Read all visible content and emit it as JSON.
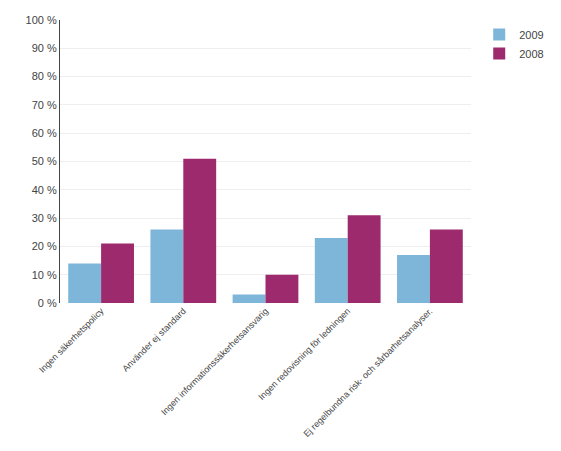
{
  "chart_data": {
    "type": "bar",
    "categories": [
      "Ingen säkerhetspolicy",
      "Använder ej standard",
      "Ingen informationssäkerhetsansvarig",
      "Ingen redovisning för ledningen",
      "Ej regelbundna risk- och sårbarhetsanalyser."
    ],
    "series": [
      {
        "name": "2009",
        "color": "#7EB6D9",
        "values": [
          14,
          26,
          3,
          23,
          17
        ]
      },
      {
        "name": "2008",
        "color": "#9E2A6E",
        "values": [
          21,
          51,
          10,
          31,
          26
        ]
      }
    ],
    "ylim": [
      0,
      100
    ],
    "yticks": [
      {
        "value": 0,
        "label": "0 %"
      },
      {
        "value": 10,
        "label": "10 %"
      },
      {
        "value": 20,
        "label": "20 %"
      },
      {
        "value": 30,
        "label": "30 %"
      },
      {
        "value": 40,
        "label": "40 %"
      },
      {
        "value": 50,
        "label": "50 %"
      },
      {
        "value": 60,
        "label": "60 %"
      },
      {
        "value": 70,
        "label": "70 %"
      },
      {
        "value": 80,
        "label": "80 %"
      },
      {
        "value": 90,
        "label": "90 %"
      },
      {
        "value": 100,
        "label": "100 %"
      }
    ],
    "grid": true,
    "legend": "right"
  }
}
